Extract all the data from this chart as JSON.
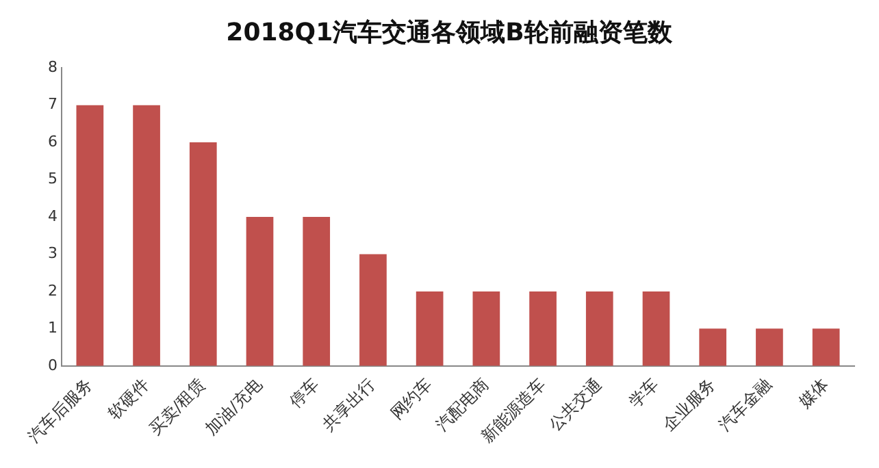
{
  "chart_data": {
    "type": "bar",
    "title": "2018Q1汽车交通各领域B轮前融资笔数",
    "categories": [
      "汽车后服务",
      "软硬件",
      "买卖/租赁",
      "加油/充电",
      "停车",
      "共享出行",
      "网约车",
      "汽配电商",
      "新能源造车",
      "公共交通",
      "学车",
      "企业服务",
      "汽车金融",
      "媒体"
    ],
    "values": [
      7,
      7,
      6,
      4,
      4,
      3,
      2,
      2,
      2,
      2,
      2,
      1,
      1,
      1
    ],
    "color": "#c0504d",
    "ylim": [
      0,
      8
    ],
    "yticks": [
      0,
      1,
      2,
      3,
      4,
      5,
      6,
      7,
      8
    ],
    "grid": false,
    "legend": false
  }
}
